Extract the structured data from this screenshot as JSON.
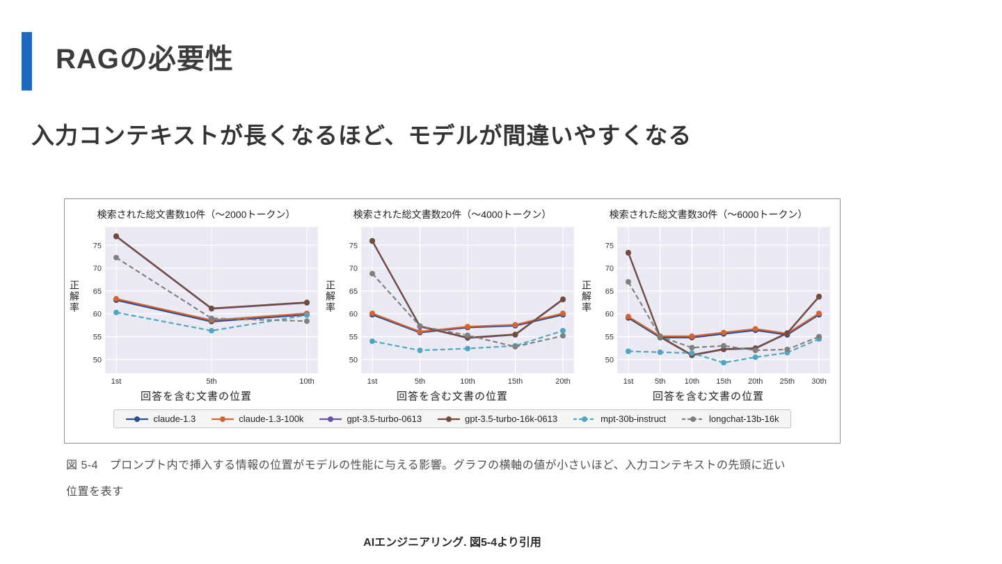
{
  "slide": {
    "title": "RAGの必要性",
    "subtitle": "入力コンテキストが長くなるほど、モデルが間違いやすくなる",
    "caption_lines": [
      "図 5-4　プロンプト内で挿入する情報の位置がモデルの性能に与える影響。グラフの横軸の値が小さいほど、入力コンテキストの先頭に近い",
      "位置を表す"
    ],
    "footer": "AIエンジニアリング. 図5-4より引用",
    "accent_color": "#1a6abf"
  },
  "style": {
    "plot_bg": "#eaeaf2",
    "grid_color": "#ffffff",
    "tick_color": "#333333"
  },
  "chart_data": [
    {
      "type": "line",
      "title": "検索された総文書数10件（～2000トークン）",
      "xlabel": "回答を含む文書の位置",
      "ylabel": "正解率",
      "ylim": [
        47,
        79
      ],
      "yticks": [
        50,
        55,
        60,
        65,
        70,
        75
      ],
      "grid": true,
      "legend_position": "bottom",
      "categories": [
        "1st",
        "5th",
        "10th"
      ],
      "series": [
        {
          "name": "claude-1.3",
          "color": "#2a4d8f",
          "dash": false,
          "values": [
            63.0,
            58.3,
            59.8
          ]
        },
        {
          "name": "claude-1.3-100k",
          "color": "#d9632f",
          "dash": false,
          "values": [
            63.3,
            58.6,
            60.1
          ]
        },
        {
          "name": "gpt-3.5-turbo-0613",
          "color": "#6a51a3",
          "dash": false,
          "values": [
            76.9,
            61.1,
            62.4
          ]
        },
        {
          "name": "gpt-3.5-turbo-16k-0613",
          "color": "#744b3a",
          "dash": false,
          "values": [
            77.0,
            61.2,
            62.5
          ]
        },
        {
          "name": "mpt-30b-instruct",
          "color": "#4ea5c4",
          "dash": true,
          "values": [
            60.3,
            56.3,
            59.7
          ]
        },
        {
          "name": "longchat-13b-16k",
          "color": "#808080",
          "dash": true,
          "values": [
            72.3,
            59.0,
            58.4
          ]
        }
      ]
    },
    {
      "type": "line",
      "title": "検索された総文書数20件（～4000トークン）",
      "xlabel": "回答を含む文書の位置",
      "ylabel": "正解率",
      "ylim": [
        47,
        79
      ],
      "yticks": [
        50,
        55,
        60,
        65,
        70,
        75
      ],
      "grid": true,
      "legend_position": "bottom",
      "categories": [
        "1st",
        "5th",
        "10th",
        "15th",
        "20th"
      ],
      "series": [
        {
          "name": "claude-1.3",
          "color": "#2a4d8f",
          "dash": false,
          "values": [
            59.8,
            55.9,
            57.0,
            57.4,
            59.8
          ]
        },
        {
          "name": "claude-1.3-100k",
          "color": "#d9632f",
          "dash": false,
          "values": [
            60.1,
            56.1,
            57.2,
            57.6,
            60.1
          ]
        },
        {
          "name": "gpt-3.5-turbo-0613",
          "color": "#6a51a3",
          "dash": false,
          "values": [
            75.9,
            57.2,
            54.7,
            55.4,
            63.1
          ]
        },
        {
          "name": "gpt-3.5-turbo-16k-0613",
          "color": "#744b3a",
          "dash": false,
          "values": [
            76.0,
            57.3,
            54.8,
            55.5,
            63.2
          ]
        },
        {
          "name": "mpt-30b-instruct",
          "color": "#4ea5c4",
          "dash": true,
          "values": [
            54.0,
            52.0,
            52.4,
            53.0,
            56.3
          ]
        },
        {
          "name": "longchat-13b-16k",
          "color": "#808080",
          "dash": true,
          "values": [
            68.8,
            57.3,
            55.3,
            52.8,
            55.2
          ]
        }
      ]
    },
    {
      "type": "line",
      "title": "検索された総文書数30件（～6000トークン）",
      "xlabel": "回答を含む文書の位置",
      "ylabel": "正解率",
      "ylim": [
        47,
        79
      ],
      "yticks": [
        50,
        55,
        60,
        65,
        70,
        75
      ],
      "grid": true,
      "legend_position": "bottom",
      "categories": [
        "1st",
        "5th",
        "10th",
        "15th",
        "20th",
        "25th",
        "30th"
      ],
      "series": [
        {
          "name": "claude-1.3",
          "color": "#2a4d8f",
          "dash": false,
          "values": [
            59.1,
            54.8,
            54.8,
            55.6,
            56.4,
            55.4,
            59.8
          ]
        },
        {
          "name": "claude-1.3-100k",
          "color": "#d9632f",
          "dash": false,
          "values": [
            59.4,
            55.1,
            55.1,
            55.9,
            56.7,
            55.7,
            60.1
          ]
        },
        {
          "name": "gpt-3.5-turbo-0613",
          "color": "#6a51a3",
          "dash": false,
          "values": [
            73.3,
            54.9,
            50.9,
            52.2,
            52.4,
            55.7,
            63.7
          ]
        },
        {
          "name": "gpt-3.5-turbo-16k-0613",
          "color": "#744b3a",
          "dash": false,
          "values": [
            73.4,
            55.0,
            51.0,
            52.3,
            52.5,
            55.8,
            63.8
          ]
        },
        {
          "name": "mpt-30b-instruct",
          "color": "#4ea5c4",
          "dash": true,
          "values": [
            51.8,
            51.6,
            51.4,
            49.3,
            50.5,
            51.5,
            54.5
          ]
        },
        {
          "name": "longchat-13b-16k",
          "color": "#808080",
          "dash": true,
          "values": [
            67.0,
            55.0,
            52.6,
            53.0,
            52.0,
            52.2,
            55.0
          ]
        }
      ]
    }
  ]
}
